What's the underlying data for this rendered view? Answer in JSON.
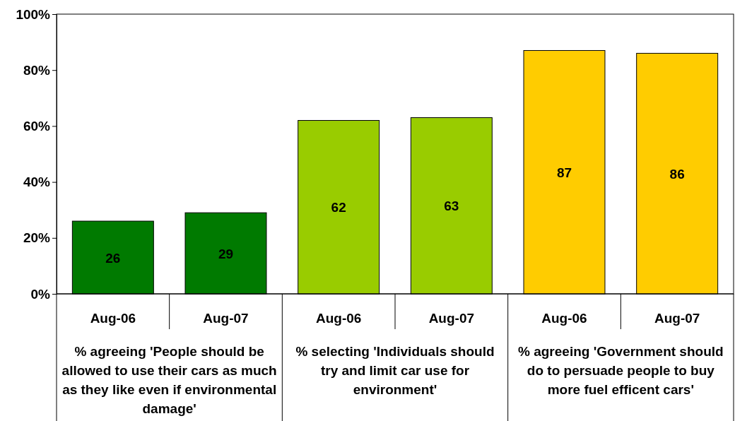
{
  "chart_data": {
    "type": "bar",
    "categories": [
      "Aug-06",
      "Aug-07",
      "Aug-06",
      "Aug-07",
      "Aug-06",
      "Aug-07"
    ],
    "values": [
      26,
      29,
      62,
      63,
      87,
      86
    ],
    "colors": [
      "#007a00",
      "#007a00",
      "#99cc00",
      "#99cc00",
      "#ffcc00",
      "#ffcc00"
    ],
    "ylim": [
      0,
      100
    ],
    "yticks": [
      {
        "value": 0,
        "label": "0%"
      },
      {
        "value": 20,
        "label": "20%"
      },
      {
        "value": 40,
        "label": "40%"
      },
      {
        "value": 60,
        "label": "60%"
      },
      {
        "value": 80,
        "label": "80%"
      },
      {
        "value": 100,
        "label": "100%"
      }
    ],
    "data_labels": true,
    "annotations": [
      "% agreeing 'People should be allowed to use their cars as much as they like even if environmental damage'",
      "% selecting 'Individuals should try and limit car use for environment'",
      "% agreeing 'Government should do to persuade people to buy more fuel efficent cars'"
    ]
  }
}
